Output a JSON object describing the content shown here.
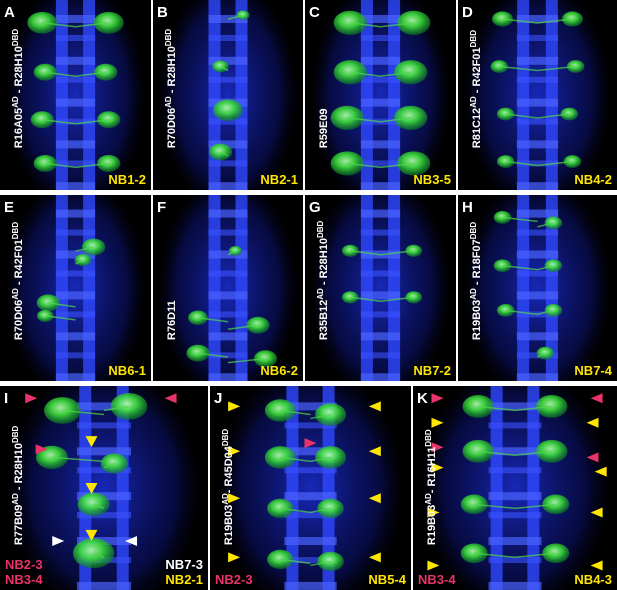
{
  "panels": [
    {
      "letter": "A",
      "genotype": [
        {
          "text": "R16A05",
          "sup": "AD"
        },
        {
          "text": " - R28H10",
          "sup": "DBD"
        }
      ],
      "labels": [
        {
          "text": "NB1-2",
          "color": "#ffe600",
          "corner": "bottom-right"
        }
      ]
    },
    {
      "letter": "B",
      "genotype": [
        {
          "text": "R70D06",
          "sup": "AD"
        },
        {
          "text": " - R28H10",
          "sup": "DBD"
        }
      ],
      "labels": [
        {
          "text": "NB2-1",
          "color": "#ffe600",
          "corner": "bottom-right"
        }
      ]
    },
    {
      "letter": "C",
      "genotype": [
        {
          "text": "R59E09"
        }
      ],
      "labels": [
        {
          "text": "NB3-5",
          "color": "#ffe600",
          "corner": "bottom-right"
        }
      ]
    },
    {
      "letter": "D",
      "genotype": [
        {
          "text": "R81C12",
          "sup": "AD"
        },
        {
          "text": " - R42F01",
          "sup": "DBD"
        }
      ],
      "labels": [
        {
          "text": "NB4-2",
          "color": "#ffe600",
          "corner": "bottom-right"
        }
      ]
    },
    {
      "letter": "E",
      "genotype": [
        {
          "text": "R70D06",
          "sup": "AD"
        },
        {
          "text": " - R42F01",
          "sup": "DBD"
        }
      ],
      "labels": [
        {
          "text": "NB6-1",
          "color": "#ffe600",
          "corner": "bottom-right"
        }
      ]
    },
    {
      "letter": "F",
      "genotype": [
        {
          "text": "R76D11"
        }
      ],
      "labels": [
        {
          "text": "NB6-2",
          "color": "#ffe600",
          "corner": "bottom-right"
        }
      ]
    },
    {
      "letter": "G",
      "genotype": [
        {
          "text": "R35B12",
          "sup": "AD"
        },
        {
          "text": " - R28H10",
          "sup": "DBD"
        }
      ],
      "labels": [
        {
          "text": "NB7-2",
          "color": "#ffe600",
          "corner": "bottom-right"
        }
      ]
    },
    {
      "letter": "H",
      "genotype": [
        {
          "text": "R19B03",
          "sup": "AD"
        },
        {
          "text": " - R18F07",
          "sup": "DBD"
        }
      ],
      "labels": [
        {
          "text": "NB7-4",
          "color": "#ffe600",
          "corner": "bottom-right"
        }
      ]
    },
    {
      "letter": "I",
      "genotype": [
        {
          "text": "R77B09",
          "sup": "AD"
        },
        {
          "text": " - R28H10",
          "sup": "DBD"
        }
      ],
      "labels": [
        {
          "text": "NB2-3",
          "color": "#e8336b",
          "corner": "bottom-left"
        },
        {
          "text": "NB3-4",
          "color": "#e8336b",
          "corner": "bottom-left"
        },
        {
          "text": "NB7-3",
          "color": "#ffffff",
          "corner": "bottom-right"
        },
        {
          "text": "NB2-1",
          "color": "#ffe600",
          "corner": "bottom-right"
        }
      ]
    },
    {
      "letter": "J",
      "genotype": [
        {
          "text": "R19B03",
          "sup": "AD"
        },
        {
          "text": "- R45D04",
          "sup": "DBD"
        }
      ],
      "labels": [
        {
          "text": "NB2-3",
          "color": "#e8336b",
          "corner": "bottom-left"
        },
        {
          "text": "NB5-4",
          "color": "#ffe600",
          "corner": "bottom-right"
        }
      ]
    },
    {
      "letter": "K",
      "genotype": [
        {
          "text": "R19B03",
          "sup": "AD"
        },
        {
          "text": "- R16H11",
          "sup": "DBD"
        }
      ],
      "labels": [
        {
          "text": "NB3-4",
          "color": "#e8336b",
          "corner": "bottom-left"
        },
        {
          "text": "NB4-3",
          "color": "#ffe600",
          "corner": "bottom-right"
        }
      ]
    }
  ]
}
